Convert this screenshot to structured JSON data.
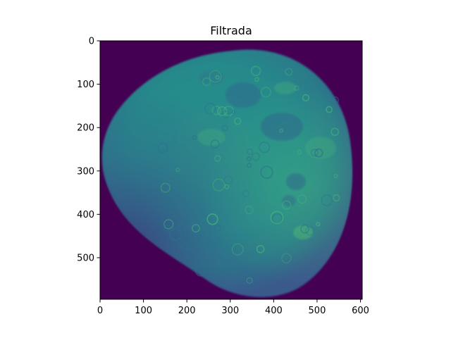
{
  "figure": {
    "title": "Filtrada",
    "background_color": "#440154",
    "colormap": "viridis",
    "x_ticks": [
      "0",
      "100",
      "200",
      "300",
      "400",
      "500",
      "600"
    ],
    "y_ticks": [
      "0",
      "100",
      "200",
      "300",
      "400",
      "500"
    ],
    "image_description_icon": "moon-image"
  }
}
